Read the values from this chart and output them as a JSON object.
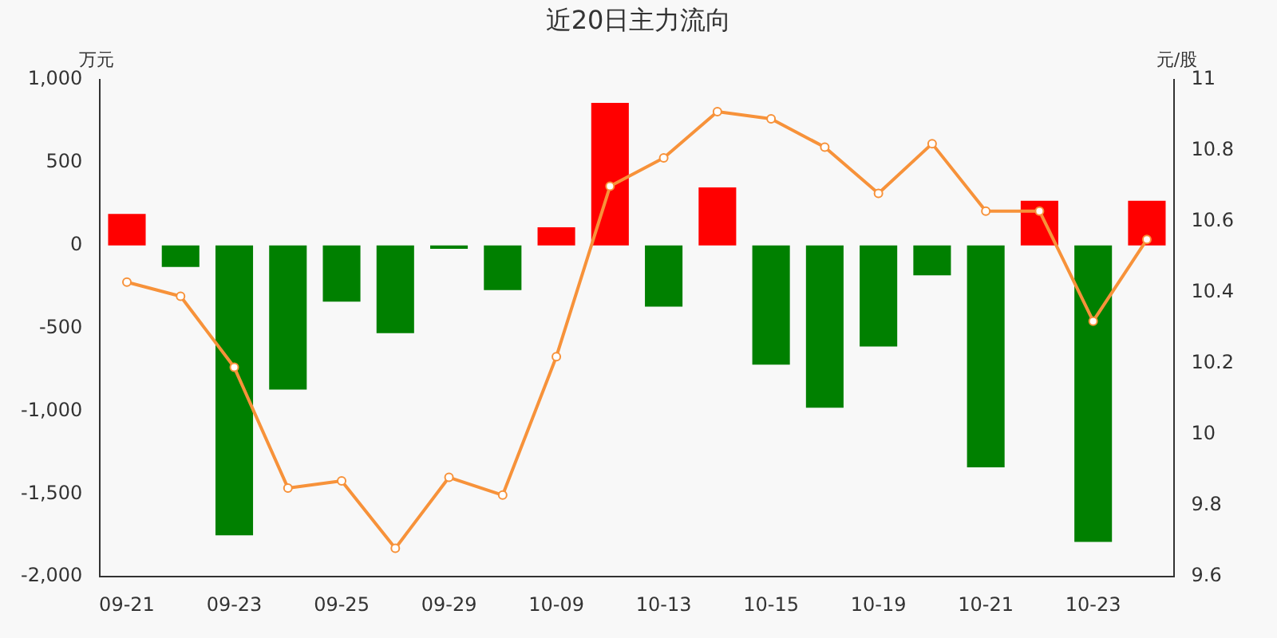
{
  "chart_data": {
    "type": "bar",
    "title": "近20日主力流向",
    "ylabel": "万元",
    "y2label": "元/股",
    "categories": [
      "09-21",
      null,
      "09-23",
      null,
      "09-25",
      null,
      "09-29",
      null,
      "10-09",
      null,
      "10-13",
      null,
      "10-15",
      null,
      "10-19",
      null,
      "10-21",
      null,
      "10-23",
      null
    ],
    "series": [
      {
        "colors": [
          "#ff0000",
          "#008000",
          "#008000",
          "#008000",
          "#008000",
          "#008000",
          "#008000",
          "#008000",
          "#ff0000",
          "#ff0000",
          "#008000",
          "#ff0000",
          "#008000",
          "#008000",
          "#008000",
          "#008000",
          "#008000",
          "#ff0000",
          "#008000",
          "#ff0000"
        ],
        "values": [
          190,
          -130,
          -1750,
          -870,
          -340,
          -530,
          -20,
          -270,
          110,
          860,
          -370,
          350,
          -720,
          -980,
          -610,
          -180,
          -1340,
          270,
          -1790,
          270
        ]
      },
      {
        "type": "line",
        "axis": "y2",
        "color": "#f7923a",
        "marker": "circle",
        "values": [
          10.43,
          10.39,
          10.19,
          9.85,
          9.87,
          9.68,
          9.88,
          9.83,
          10.22,
          10.7,
          10.78,
          10.91,
          10.89,
          10.81,
          10.68,
          10.82,
          10.63,
          10.63,
          10.32,
          10.55
        ]
      }
    ],
    "ylim": [
      -2000,
      1000
    ],
    "yticks": [
      {
        "value": -2000,
        "label": "-2,000"
      },
      {
        "value": -1500,
        "label": "-1,500"
      },
      {
        "value": -1000,
        "label": "-1,000"
      },
      -500,
      0,
      500,
      {
        "value": 1000,
        "label": "1,000"
      }
    ],
    "y2lim": [
      9.6,
      11
    ],
    "y2ticks": [
      9.6,
      9.8,
      10,
      10.2,
      10.4,
      10.6,
      10.8,
      11
    ],
    "grid": false,
    "legend": false
  }
}
